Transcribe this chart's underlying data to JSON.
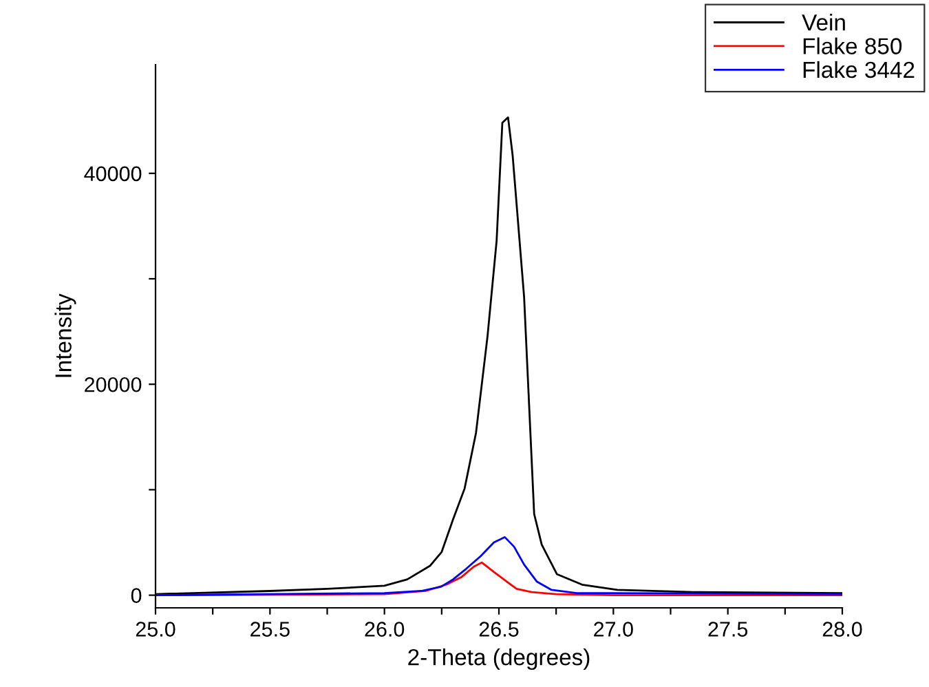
{
  "chart_data": {
    "type": "line",
    "xlabel": "2-Theta (degrees)",
    "ylabel": "Intensity",
    "xlim": [
      25.0,
      28.0
    ],
    "xticks": [
      {
        "value": 25.0,
        "label": "25.0"
      },
      {
        "value": 25.25,
        "label": null
      },
      25.5,
      {
        "value": 25.75,
        "label": null
      },
      {
        "value": 26.0,
        "label": "26.0"
      },
      {
        "value": 26.25,
        "label": null
      },
      26.5,
      {
        "value": 26.75,
        "label": null
      },
      {
        "value": 27.0,
        "label": "27.0"
      },
      {
        "value": 27.25,
        "label": null
      },
      27.5,
      {
        "value": 27.75,
        "label": null
      },
      {
        "value": 28.0,
        "label": "28.0"
      }
    ],
    "ylim": [
      -1200,
      50300
    ],
    "yticks": [
      0,
      {
        "value": 10000,
        "label": null
      },
      20000,
      {
        "value": 30000,
        "label": null
      },
      40000
    ],
    "grid": false,
    "legend": "top right",
    "series": [
      {
        "name": "Vein",
        "color": "#000000",
        "x": [
          25.0,
          25.5,
          25.75,
          26.0,
          26.1,
          26.2,
          26.25,
          26.3,
          26.35,
          26.4,
          26.45,
          26.49,
          26.515,
          26.54,
          26.56,
          26.61,
          26.654,
          26.687,
          26.753,
          26.863,
          27.017,
          27.35,
          28.0
        ],
        "values": [
          100,
          400,
          600,
          900,
          1500,
          2800,
          4100,
          7200,
          10100,
          15400,
          24500,
          33600,
          44800,
          45300,
          41700,
          28300,
          7700,
          4800,
          2000,
          1000,
          500,
          300,
          200
        ]
      },
      {
        "name": "Flake 850",
        "color": "#ff0000",
        "x": [
          25.0,
          26.0,
          26.18,
          26.27,
          26.335,
          26.39,
          26.425,
          26.478,
          26.533,
          26.577,
          26.643,
          26.75,
          27.0,
          28.0
        ],
        "values": [
          0,
          100,
          400,
          1000,
          1700,
          2700,
          3100,
          2200,
          1300,
          600,
          300,
          100,
          0,
          0
        ]
      },
      {
        "name": "Flake 3442",
        "color": "#0000ff",
        "x": [
          25.0,
          26.0,
          26.16,
          26.247,
          26.3,
          26.357,
          26.42,
          26.478,
          26.526,
          26.566,
          26.61,
          26.665,
          26.73,
          26.84,
          27.0,
          28.0
        ],
        "values": [
          0,
          200,
          400,
          800,
          1500,
          2500,
          3700,
          5000,
          5500,
          4600,
          2900,
          1300,
          500,
          200,
          200,
          100
        ]
      }
    ]
  }
}
